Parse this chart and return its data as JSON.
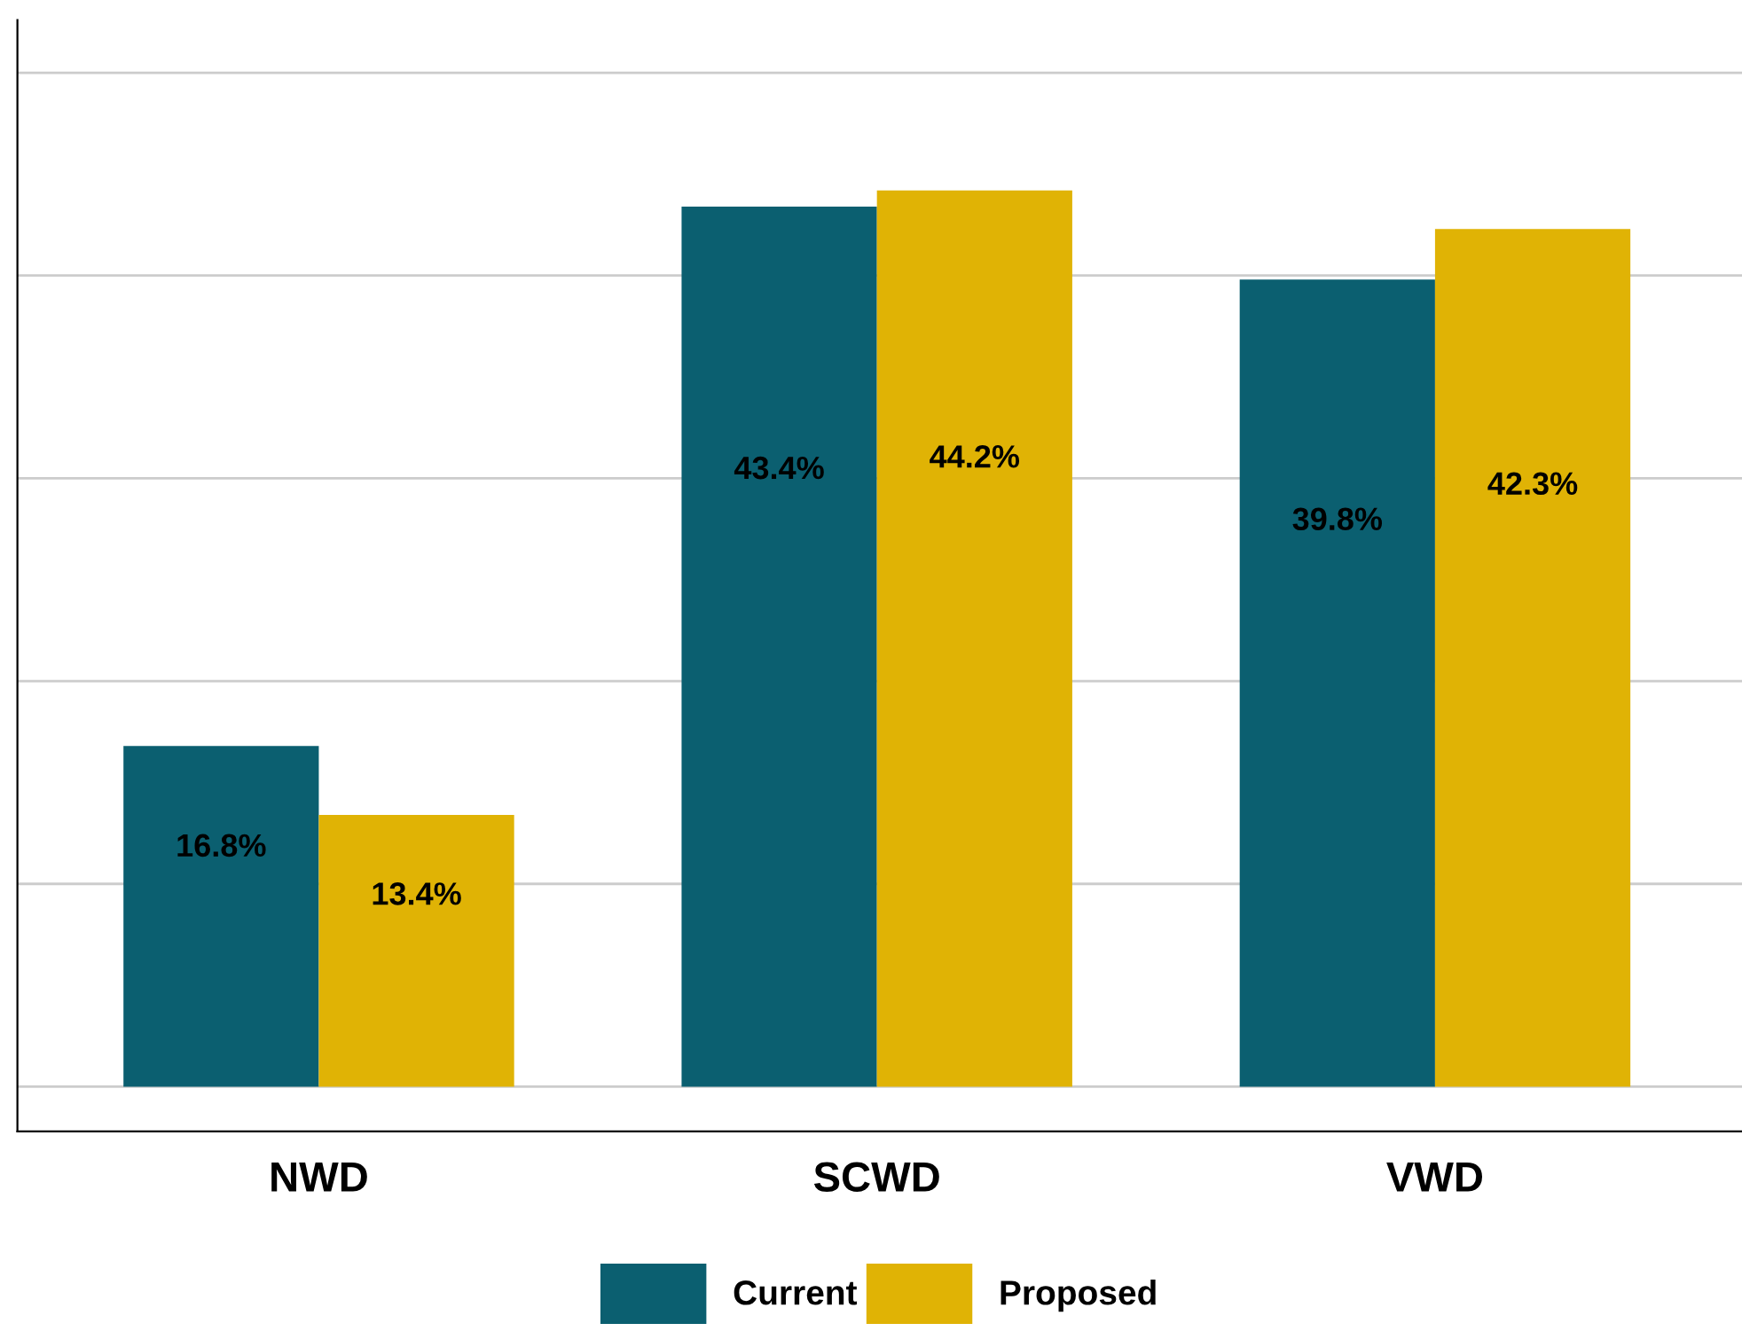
{
  "chart_data": {
    "type": "bar",
    "categories": [
      "NWD",
      "SCWD",
      "VWD"
    ],
    "series": [
      {
        "name": "Current",
        "color": "#0b5f70",
        "values": [
          16.8,
          43.4,
          39.8
        ],
        "value_labels": [
          "16.8%",
          "43.4%",
          "39.8%"
        ]
      },
      {
        "name": "Proposed",
        "color": "#e0b305",
        "values": [
          13.4,
          44.2,
          42.3
        ],
        "value_labels": [
          "13.4%",
          "44.2%",
          "42.3%"
        ]
      }
    ],
    "grid": "y",
    "legend": "bottom",
    "tick_labels": "x"
  }
}
